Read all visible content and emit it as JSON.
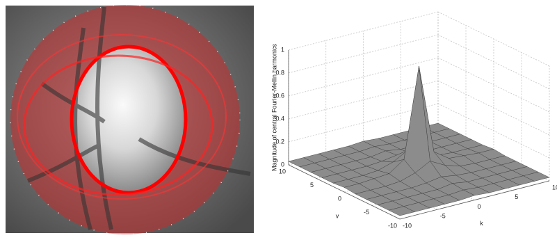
{
  "chart_data": {
    "type": "surface",
    "zlabel": "Magnitude of central Fourier-Mellin harmonics",
    "xlabel": "k",
    "ylabel": "v",
    "x": [
      -10,
      -8,
      -6,
      -4,
      -2,
      0,
      2,
      4,
      6,
      8,
      10
    ],
    "y": [
      -10,
      -8,
      -6,
      -4,
      -2,
      0,
      2,
      4,
      6,
      8,
      10
    ],
    "z": [
      [
        0.03,
        0.03,
        0.03,
        0.03,
        0.03,
        0.04,
        0.03,
        0.03,
        0.03,
        0.03,
        0.03
      ],
      [
        0.03,
        0.03,
        0.03,
        0.03,
        0.03,
        0.04,
        0.03,
        0.03,
        0.03,
        0.03,
        0.03
      ],
      [
        0.03,
        0.03,
        0.03,
        0.03,
        0.03,
        0.05,
        0.03,
        0.03,
        0.03,
        0.03,
        0.03
      ],
      [
        0.03,
        0.03,
        0.03,
        0.03,
        0.04,
        0.06,
        0.04,
        0.03,
        0.03,
        0.03,
        0.03
      ],
      [
        0.03,
        0.03,
        0.03,
        0.04,
        0.08,
        0.15,
        0.08,
        0.04,
        0.03,
        0.03,
        0.03
      ],
      [
        0.04,
        0.04,
        0.05,
        0.06,
        0.15,
        0.93,
        0.15,
        0.06,
        0.05,
        0.04,
        0.04
      ],
      [
        0.03,
        0.03,
        0.03,
        0.04,
        0.08,
        0.15,
        0.08,
        0.04,
        0.03,
        0.03,
        0.03
      ],
      [
        0.03,
        0.03,
        0.03,
        0.03,
        0.04,
        0.06,
        0.04,
        0.03,
        0.03,
        0.03,
        0.03
      ],
      [
        0.03,
        0.03,
        0.03,
        0.03,
        0.03,
        0.05,
        0.03,
        0.03,
        0.03,
        0.03,
        0.03
      ],
      [
        0.03,
        0.03,
        0.03,
        0.03,
        0.03,
        0.04,
        0.03,
        0.03,
        0.03,
        0.03,
        0.03
      ],
      [
        0.03,
        0.03,
        0.03,
        0.03,
        0.03,
        0.04,
        0.03,
        0.03,
        0.03,
        0.03,
        0.03
      ]
    ],
    "xlim": [
      -10,
      10
    ],
    "xticks": [
      -10,
      -5,
      0,
      5,
      10
    ],
    "ylim": [
      -10,
      10
    ],
    "yticks": [
      -10,
      -5,
      0,
      5,
      10
    ],
    "zlim": [
      0,
      1
    ],
    "zticks": [
      0,
      0.2,
      0.4,
      0.6,
      0.8,
      1
    ],
    "color": "#8c8c8c",
    "grid": true
  }
}
